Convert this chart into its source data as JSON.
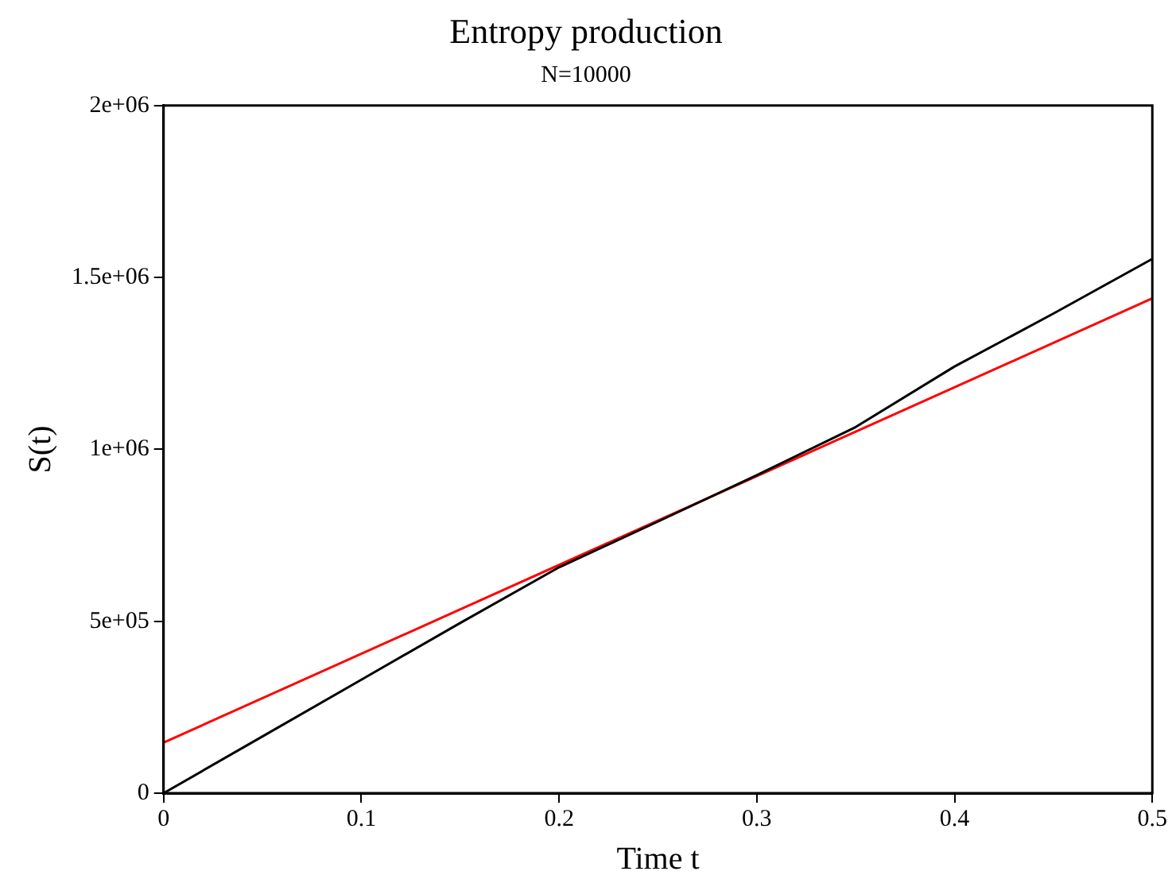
{
  "chart_data": {
    "type": "line",
    "title": "Entropy production",
    "subtitle": "N=10000",
    "xlabel": "Time t",
    "ylabel": "S(t)",
    "x": [
      0,
      0.05,
      0.1,
      0.15,
      0.2,
      0.25,
      0.3,
      0.35,
      0.4,
      0.45,
      0.5
    ],
    "series": [
      {
        "color": "#000000",
        "values": [
          0,
          165000,
          330000,
          495000,
          657000,
          790000,
          925000,
          1065000,
          1241000,
          1395000,
          1554000
        ]
      },
      {
        "color": "#ff0000",
        "x": [
          0,
          0.5
        ],
        "values": [
          147000,
          1439000
        ]
      }
    ],
    "xlim": [
      0,
      0.5
    ],
    "xticks": [
      0,
      0.1,
      0.2,
      0.3,
      0.4,
      0.5
    ],
    "ylim": [
      0,
      2000000
    ],
    "yticks": [
      {
        "value": 0,
        "label": "0"
      },
      {
        "value": 500000,
        "label": "5e+05"
      },
      {
        "value": 1000000,
        "label": "1e+06"
      },
      {
        "value": 1500000,
        "label": "1.5e+06"
      },
      {
        "value": 2000000,
        "label": "2e+06"
      }
    ],
    "grid": false,
    "legend": false,
    "marker": "none",
    "line_style": "solid"
  }
}
